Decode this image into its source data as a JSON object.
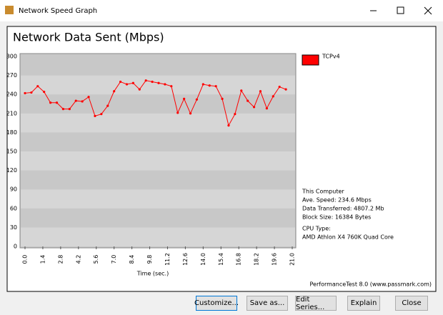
{
  "window": {
    "title": "Network Speed Graph",
    "buttons": [
      "Customize...",
      "Save as...",
      "Edit Series...",
      "Explain",
      "Close"
    ]
  },
  "chart_data": {
    "type": "line",
    "title": "Network Data Sent (Mbps)",
    "x_label": "Time (sec.)",
    "x": [
      0,
      0.5,
      1,
      1.5,
      2,
      2.5,
      3,
      3.5,
      4,
      4.5,
      5,
      5.5,
      6,
      6.5,
      7,
      7.5,
      8,
      8.5,
      9,
      9.5,
      10,
      10.5,
      11,
      11.5,
      12,
      12.5,
      13,
      13.5,
      14,
      14.5,
      15,
      15.5,
      16,
      16.5,
      17,
      17.5,
      18,
      18.5,
      19,
      19.5,
      20,
      20.5
    ],
    "series": [
      {
        "name": "TCPv4",
        "color": "#ff0000",
        "values": [
          242,
          243,
          253,
          244,
          227,
          227,
          217,
          217,
          230,
          229,
          236,
          206,
          209,
          222,
          245,
          260,
          256,
          258,
          248,
          262,
          260,
          258,
          256,
          253,
          211,
          233,
          210,
          232,
          256,
          254,
          253,
          233,
          191,
          209,
          246,
          230,
          220,
          245,
          218,
          237,
          252,
          248
        ]
      }
    ],
    "xlim": [
      0,
      21
    ],
    "ylim": [
      0,
      300
    ],
    "xticks": [
      {
        "value": 0,
        "label": "0.0"
      },
      1.4,
      2.8,
      4.2,
      5.6,
      {
        "value": 7,
        "label": "7.0"
      },
      8.4,
      9.8,
      11.2,
      12.6,
      {
        "value": 14,
        "label": "14.0"
      },
      15.4,
      16.8,
      18.2,
      19.6,
      {
        "value": 21,
        "label": "21.0"
      }
    ],
    "yticks": [
      0,
      30,
      60,
      90,
      120,
      150,
      180,
      210,
      240,
      270,
      300
    ],
    "info": [
      "This Computer",
      "Ave. Speed: 234.6 Mbps",
      "Data Transferred: 4807.2 Mb",
      "Block Size: 16384 Bytes",
      "CPU Type:",
      "AMD Athlon X4 760K Quad Core"
    ],
    "footer": "PerformanceTest 8.0 (www.passmark.com)"
  }
}
